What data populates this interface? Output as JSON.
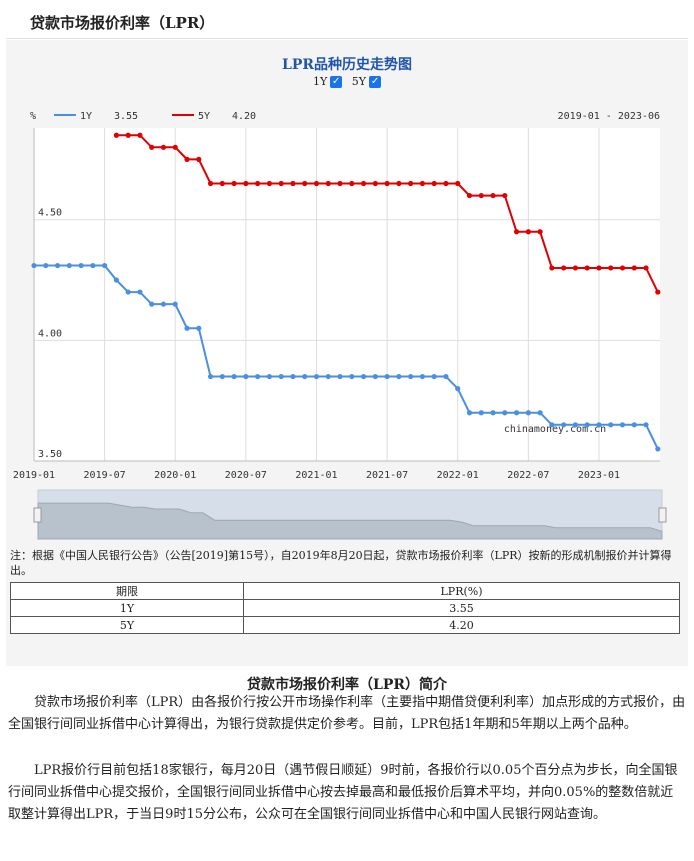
{
  "page": {
    "title": "贷款市场报价利率（LPR）"
  },
  "chart_toggles": [
    {
      "label": "1Y",
      "checked": true
    },
    {
      "label": "5Y",
      "checked": true
    }
  ],
  "chart_data": {
    "type": "line",
    "title": "LPR品种历史走势图",
    "ylabel": "%",
    "date_range": "2019-01 - 2023-06",
    "ylim": [
      3.5,
      4.88
    ],
    "yticks": [
      3.5,
      4.0,
      4.5
    ],
    "ytick_labels": [
      "3.50",
      "4.00",
      "4.50"
    ],
    "xtick_labels": [
      "2019-01",
      "2019-07",
      "2020-01",
      "2020-07",
      "2021-01",
      "2021-07",
      "2022-01",
      "2022-07",
      "2023-01"
    ],
    "watermark": "chinamoney.com.cn",
    "grid": true,
    "legend_position": "top-left",
    "series": [
      {
        "name": "1Y",
        "latest": "3.55",
        "color": "#4a90e2",
        "values": [
          4.31,
          4.31,
          4.31,
          4.31,
          4.31,
          4.31,
          4.31,
          4.25,
          4.2,
          4.2,
          4.15,
          4.15,
          4.15,
          4.05,
          4.05,
          3.85,
          3.85,
          3.85,
          3.85,
          3.85,
          3.85,
          3.85,
          3.85,
          3.85,
          3.85,
          3.85,
          3.85,
          3.85,
          3.85,
          3.85,
          3.85,
          3.85,
          3.85,
          3.85,
          3.85,
          3.85,
          3.8,
          3.7,
          3.7,
          3.7,
          3.7,
          3.7,
          3.7,
          3.7,
          3.65,
          3.65,
          3.65,
          3.65,
          3.65,
          3.65,
          3.65,
          3.65,
          3.65,
          3.55
        ]
      },
      {
        "name": "5Y",
        "latest": "4.20",
        "color": "#e00000",
        "values": [
          null,
          null,
          null,
          null,
          null,
          null,
          null,
          4.85,
          4.85,
          4.85,
          4.8,
          4.8,
          4.8,
          4.75,
          4.75,
          4.65,
          4.65,
          4.65,
          4.65,
          4.65,
          4.65,
          4.65,
          4.65,
          4.65,
          4.65,
          4.65,
          4.65,
          4.65,
          4.65,
          4.65,
          4.65,
          4.65,
          4.65,
          4.65,
          4.65,
          4.65,
          4.65,
          4.6,
          4.6,
          4.6,
          4.6,
          4.45,
          4.45,
          4.45,
          4.3,
          4.3,
          4.3,
          4.3,
          4.3,
          4.3,
          4.3,
          4.3,
          4.3,
          4.2
        ]
      }
    ],
    "start_month": "2019-01"
  },
  "note": "注：根据《中国人民银行公告》（公告[2019]第15号），自2019年8月20日起，贷款市场报价利率（LPR）按新的形成机制报价并计算得出。",
  "table": {
    "headers": [
      "期限",
      "LPR(%)"
    ],
    "rows": [
      [
        "1Y",
        "3.55"
      ],
      [
        "5Y",
        "4.20"
      ]
    ]
  },
  "intro": {
    "title": "贷款市场报价利率（LPR）简介",
    "paragraphs": [
      "贷款市场报价利率（LPR）由各报价行按公开市场操作利率（主要指中期借贷便利利率）加点形成的方式报价，由全国银行间同业拆借中心计算得出，为银行贷款提供定价参考。目前，LPR包括1年期和5年期以上两个品种。",
      "LPR报价行目前包括18家银行，每月20日（遇节假日顺延）9时前，各报价行以0.05个百分点为步长，向全国银行间同业拆借中心提交报价，全国银行间同业拆借中心按去掉最高和最低报价后算术平均，并向0.05%的整数倍就近取整计算得出LPR，于当日9时15分公布，公众可在全国银行间同业拆借中心和中国人民银行网站查询。"
    ]
  }
}
